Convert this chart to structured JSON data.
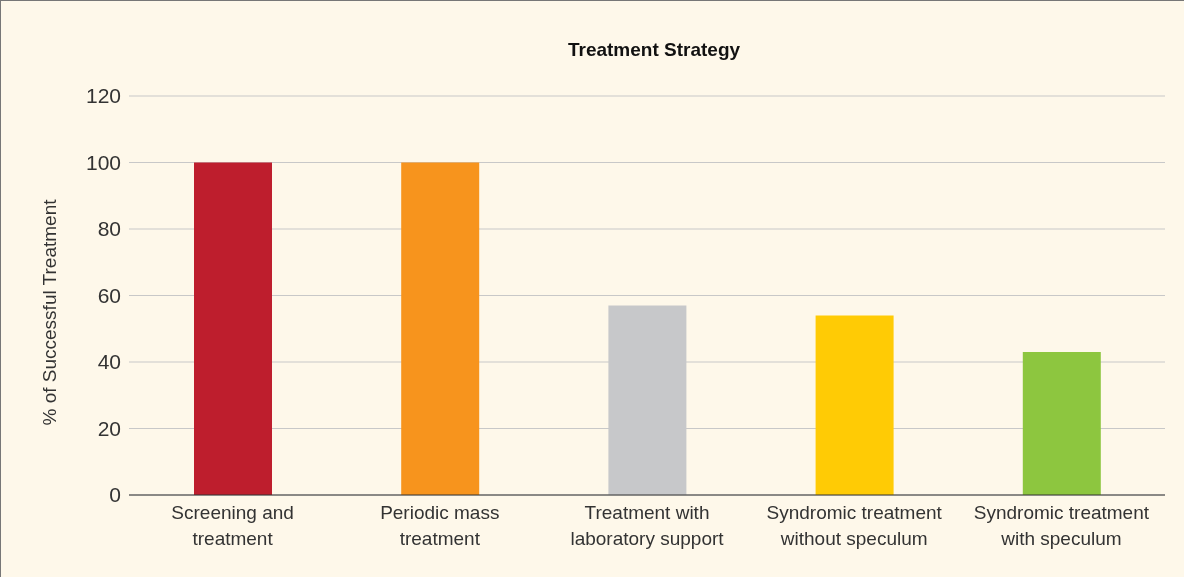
{
  "chart_data": {
    "type": "bar",
    "title": "Treatment Strategy",
    "ylabel": "% of Successful Treatment",
    "categories": [
      "Screening and treatment",
      "Periodic mass treatment",
      "Treatment with laboratory support",
      "Syndromic treatment without speculum",
      "Syndromic treatment with speculum"
    ],
    "values": [
      100,
      100,
      57,
      54,
      43
    ],
    "colors": [
      "#be1e2d",
      "#f7941d",
      "#c7c8ca",
      "#ffcb05",
      "#8dc63f"
    ],
    "ylim": [
      0,
      120
    ],
    "yticks": [
      0,
      20,
      40,
      60,
      80,
      100,
      120
    ],
    "grid": "y"
  }
}
